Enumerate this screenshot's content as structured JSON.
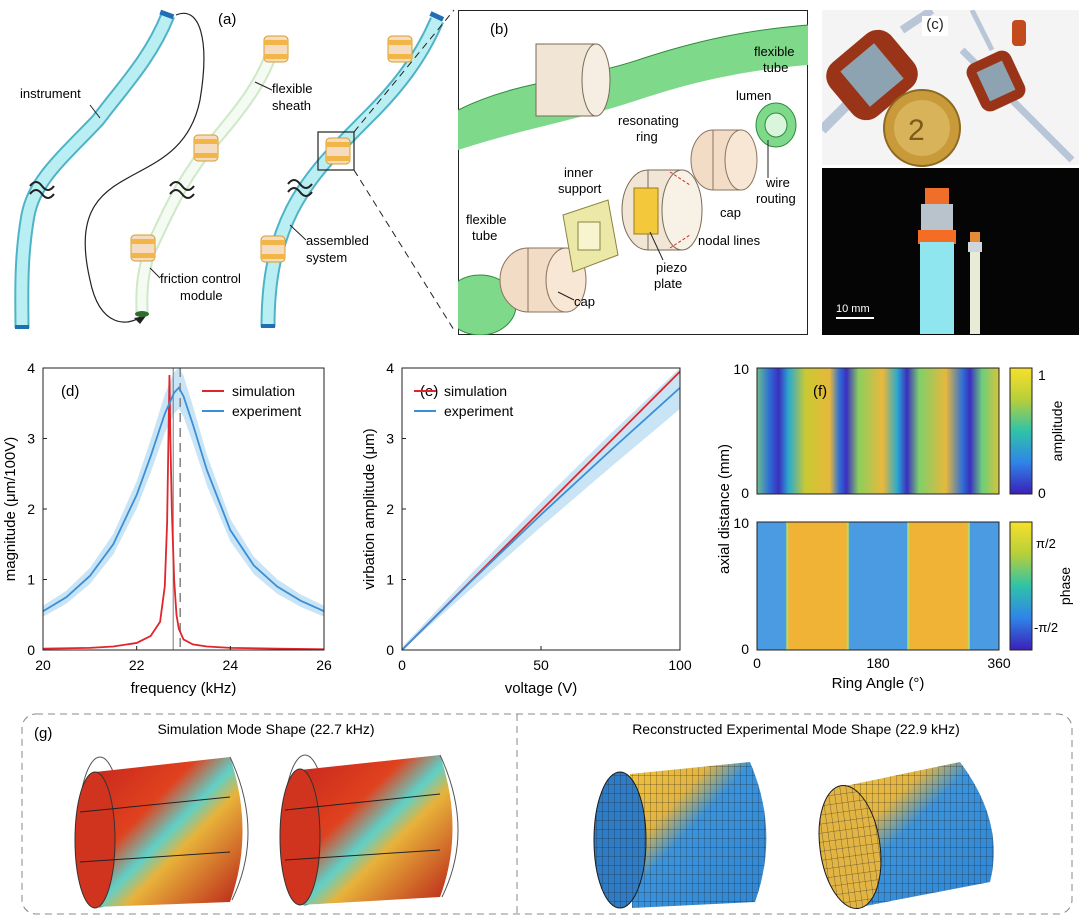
{
  "panel_a": {
    "label": "(a)",
    "instrument": "instrument",
    "sheath_line1": "flexible",
    "sheath_line2": "sheath",
    "fcm_line1": "friction control",
    "fcm_line2": "module",
    "assembled_line1": "assembled",
    "assembled_line2": "system"
  },
  "panel_b": {
    "label": "(b)",
    "flex_tube_right_1": "flexible",
    "flex_tube_right_2": "tube",
    "lumen": "lumen",
    "resonating_1": "resonating",
    "resonating_2": "ring",
    "inner_support_1": "inner",
    "inner_support_2": "support",
    "wire_1": "wire",
    "wire_2": "routing",
    "cap_right": "cap",
    "flex_tube_left_1": "flexible",
    "flex_tube_left_2": "tube",
    "nodal_lines": "nodal lines",
    "piezo_1": "piezo",
    "piezo_2": "plate",
    "cap_left": "cap"
  },
  "panel_c": {
    "label": "(c)",
    "scale": "10 mm"
  },
  "panel_d": {
    "label": "(d)"
  },
  "panel_e": {
    "label": "(e)"
  },
  "panel_f": {
    "label": "(f)",
    "xlabel": "Ring Angle (°)",
    "ylabel": "axial distance (mm)",
    "amp_cb_label": "amplitude",
    "amp_cb_ticks": [
      "1",
      "0"
    ],
    "phase_cb_label": "phase",
    "phase_cb_ticks": [
      "π/2",
      "-π/2"
    ],
    "x_ticks": [
      "0",
      "180",
      "360"
    ],
    "y_ticks_top": [
      "10",
      "0"
    ],
    "y_ticks_bottom": [
      "10",
      "0"
    ]
  },
  "panel_g": {
    "label": "(g)",
    "sim_title": "Simulation Mode Shape (22.7 kHz)",
    "exp_title": "Reconstructed Experimental Mode Shape (22.9 kHz)"
  },
  "colors": {
    "simulation": "#e0262b",
    "experiment": "#3a8fd9",
    "experiment_band": "#bfe0f3",
    "tube": "#9fe3ea",
    "module": "#f2b648"
  },
  "chart_data": [
    {
      "type": "line",
      "panel": "d",
      "xlabel": "frequency (kHz)",
      "ylabel": "magnitude (μm/100V)",
      "xlim": [
        20,
        26
      ],
      "ylim": [
        0,
        4
      ],
      "x_ticks": [
        20,
        22,
        24,
        26
      ],
      "y_ticks": [
        0,
        1,
        2,
        3,
        4
      ],
      "legend": "top-right",
      "series": [
        {
          "name": "simulation",
          "x": [
            20,
            21,
            21.5,
            22,
            22.3,
            22.5,
            22.6,
            22.65,
            22.7,
            22.72,
            22.75,
            22.8,
            22.85,
            22.9,
            23,
            23.2,
            23.5,
            24,
            25,
            26
          ],
          "y": [
            0.02,
            0.03,
            0.05,
            0.1,
            0.2,
            0.4,
            0.9,
            1.8,
            3.9,
            3.0,
            2.0,
            1.0,
            0.5,
            0.3,
            0.15,
            0.08,
            0.05,
            0.03,
            0.02,
            0.01
          ]
        },
        {
          "name": "experiment",
          "x": [
            20,
            20.5,
            21,
            21.5,
            22,
            22.3,
            22.6,
            22.8,
            22.9,
            23,
            23.2,
            23.5,
            24,
            24.5,
            25,
            25.5,
            26
          ],
          "y": [
            0.55,
            0.75,
            1.05,
            1.5,
            2.2,
            2.75,
            3.35,
            3.65,
            3.72,
            3.6,
            3.2,
            2.55,
            1.7,
            1.2,
            0.9,
            0.7,
            0.55
          ]
        }
      ],
      "vertical_markers": [
        22.78,
        22.93
      ]
    },
    {
      "type": "line",
      "panel": "e",
      "xlabel": "voltage (V)",
      "ylabel": "virbation amplitude (μm)",
      "xlim": [
        0,
        100
      ],
      "ylim": [
        0,
        4
      ],
      "x_ticks": [
        0,
        50,
        100
      ],
      "y_ticks": [
        0,
        1,
        2,
        3,
        4
      ],
      "legend": "top-left",
      "series": [
        {
          "name": "simulation",
          "x": [
            0,
            100
          ],
          "y": [
            0,
            3.95
          ]
        },
        {
          "name": "experiment",
          "x": [
            0,
            25,
            50,
            75,
            100
          ],
          "y": [
            0,
            0.98,
            1.92,
            2.83,
            3.72
          ]
        }
      ]
    },
    {
      "type": "heatmap",
      "panel": "f-amplitude",
      "xlim": [
        0,
        360
      ],
      "ylim": [
        0,
        10
      ],
      "crange": [
        0,
        1
      ],
      "low_amplitude_angles": [
        45,
        135,
        225,
        315
      ]
    },
    {
      "type": "heatmap",
      "panel": "f-phase",
      "xlim": [
        0,
        360
      ],
      "ylim": [
        0,
        10
      ],
      "phase_bands": [
        {
          "from": 0,
          "to": 45,
          "value": "-π/2"
        },
        {
          "from": 45,
          "to": 135,
          "value": "π/2"
        },
        {
          "from": 135,
          "to": 225,
          "value": "-π/2"
        },
        {
          "from": 225,
          "to": 315,
          "value": "π/2"
        },
        {
          "from": 315,
          "to": 360,
          "value": "-π/2"
        }
      ]
    }
  ]
}
